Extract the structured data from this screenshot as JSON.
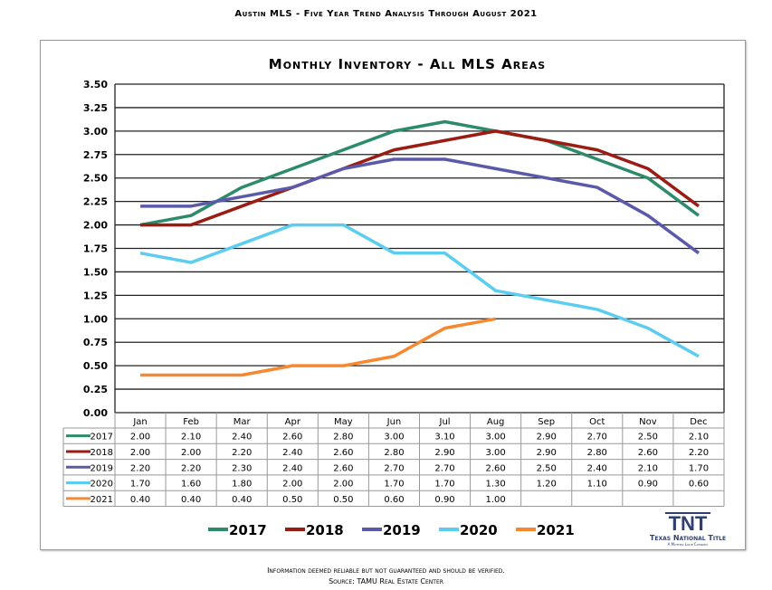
{
  "page_title": "Austin MLS - Five Year Trend Analysis Through August 2021",
  "footer": {
    "line1": "Information deemed reliable but not guaranteed and should be verified.",
    "line2": "Source: TAMU Real Estate Center"
  },
  "logo": {
    "mark": "TNT",
    "name": "Texas National Title",
    "tagline": "A Mother Lode Company"
  },
  "chart_data": {
    "type": "line",
    "title": "Monthly Inventory - All MLS Areas",
    "xlabel": "",
    "ylabel": "",
    "ylim": [
      0,
      3.5
    ],
    "yticks": [
      "0.00",
      "0.25",
      "0.50",
      "0.75",
      "1.00",
      "1.25",
      "1.50",
      "1.75",
      "2.00",
      "2.25",
      "2.50",
      "2.75",
      "3.00",
      "3.25",
      "3.50"
    ],
    "grid": true,
    "legend": "bottom",
    "categories": [
      "Jan",
      "Feb",
      "Mar",
      "Apr",
      "May",
      "Jun",
      "Jul",
      "Aug",
      "Sep",
      "Oct",
      "Nov",
      "Dec"
    ],
    "series": [
      {
        "name": "2017",
        "color": "#2e8b6a",
        "values": [
          2.0,
          2.1,
          2.4,
          2.6,
          2.8,
          3.0,
          3.1,
          3.0,
          2.9,
          2.7,
          2.5,
          2.1
        ]
      },
      {
        "name": "2018",
        "color": "#9b1c12",
        "values": [
          2.0,
          2.0,
          2.2,
          2.4,
          2.6,
          2.8,
          2.9,
          3.0,
          2.9,
          2.8,
          2.6,
          2.2
        ]
      },
      {
        "name": "2019",
        "color": "#5a5aa8",
        "values": [
          2.2,
          2.2,
          2.3,
          2.4,
          2.6,
          2.7,
          2.7,
          2.6,
          2.5,
          2.4,
          2.1,
          1.7
        ]
      },
      {
        "name": "2020",
        "color": "#5ccdef",
        "values": [
          1.7,
          1.6,
          1.8,
          2.0,
          2.0,
          1.7,
          1.7,
          1.3,
          1.2,
          1.1,
          0.9,
          0.6
        ]
      },
      {
        "name": "2021",
        "color": "#f7882f",
        "values": [
          0.4,
          0.4,
          0.4,
          0.5,
          0.5,
          0.6,
          0.9,
          1.0,
          null,
          null,
          null,
          null
        ]
      }
    ]
  }
}
